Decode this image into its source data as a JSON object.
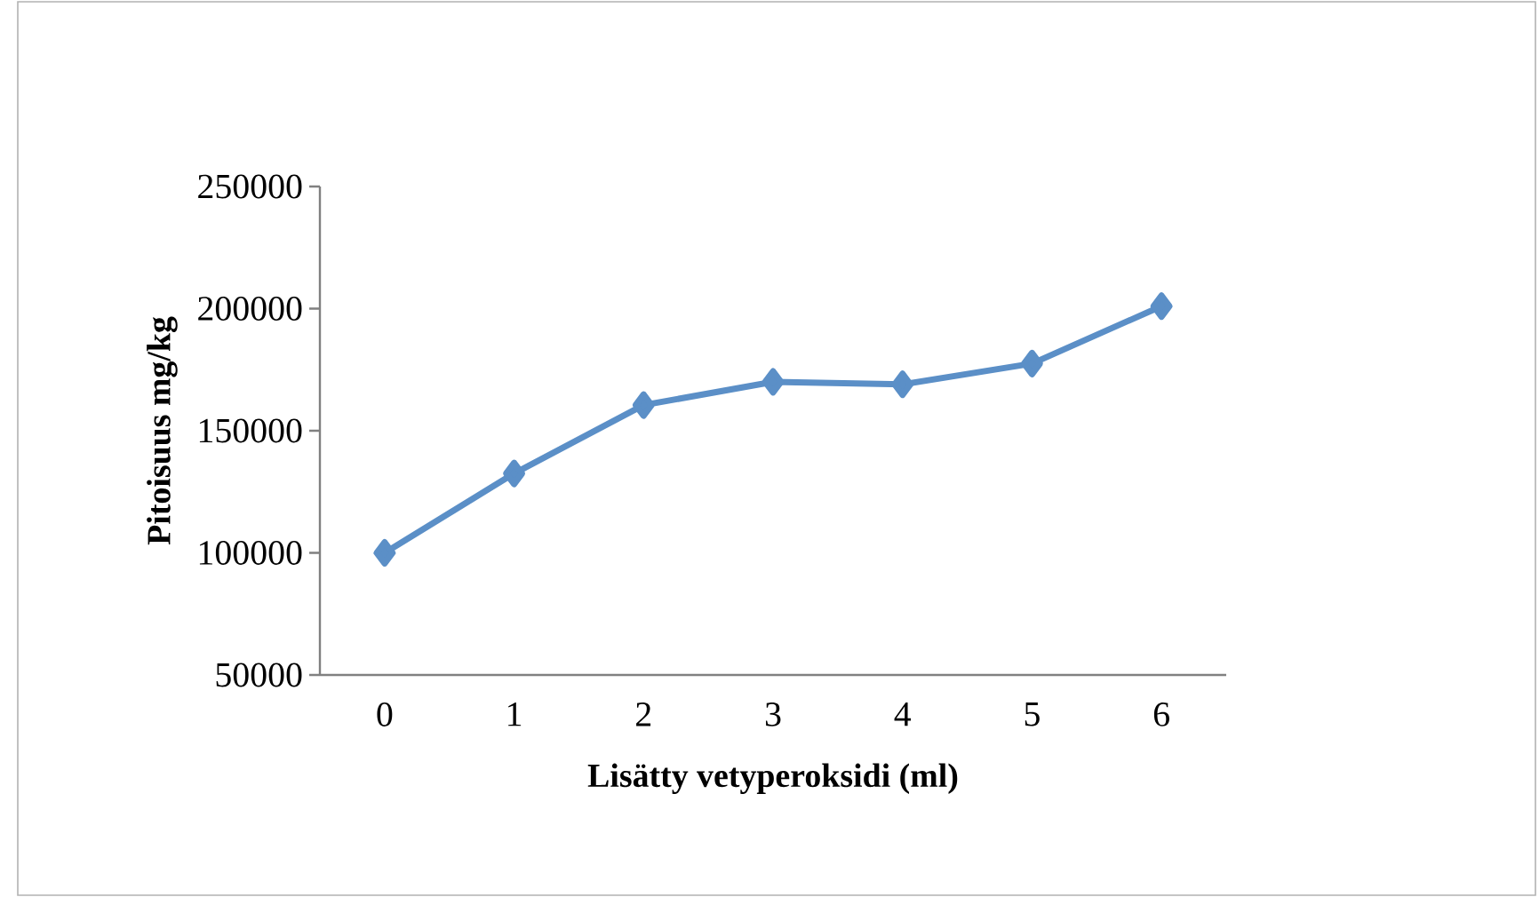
{
  "chart_data": {
    "type": "line",
    "xlabel": "Lisätty vetyperoksidi (ml)",
    "ylabel": "Pitoisuus mg/kg",
    "categories": [
      "0",
      "1",
      "2",
      "3",
      "4",
      "5",
      "6"
    ],
    "series": [
      {
        "color": "#5b8fc7",
        "values": [
          100000,
          132500,
          160500,
          170000,
          169000,
          177500,
          201000
        ]
      }
    ],
    "ylim": [
      50000,
      250000
    ],
    "yticks": [
      50000,
      100000,
      150000,
      200000,
      250000
    ],
    "grid": false,
    "marker": "diamond",
    "line_style": "solid"
  }
}
